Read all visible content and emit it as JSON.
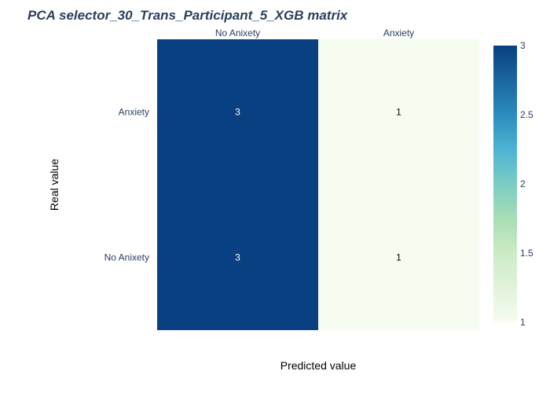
{
  "chart_data": {
    "type": "heatmap",
    "title": "PCA selector_30_Trans_Participant_5_XGB matrix",
    "xlabel": "Predicted value",
    "ylabel": "Real value",
    "x_categories": [
      "No Anixety",
      "Anxiety"
    ],
    "y_categories": [
      "Anxiety",
      "No Anixety"
    ],
    "z": [
      [
        3,
        1
      ],
      [
        3,
        1
      ]
    ],
    "colorscale": "GnBu",
    "colors": {
      "low": "#f7fcf0",
      "c1": "#e0f3db",
      "c2": "#ccebc5",
      "c3": "#a8ddb5",
      "c4": "#7bccc4",
      "c5": "#4eb3d3",
      "c6": "#2b8cbe",
      "high": "#084081",
      "text_dark": "#000000",
      "text_light": "#ffffff"
    },
    "colorbar": {
      "range": [
        1,
        3
      ],
      "ticks": [
        "1",
        "1.5",
        "2",
        "2.5",
        "3"
      ]
    },
    "x_axis_side": "top"
  }
}
